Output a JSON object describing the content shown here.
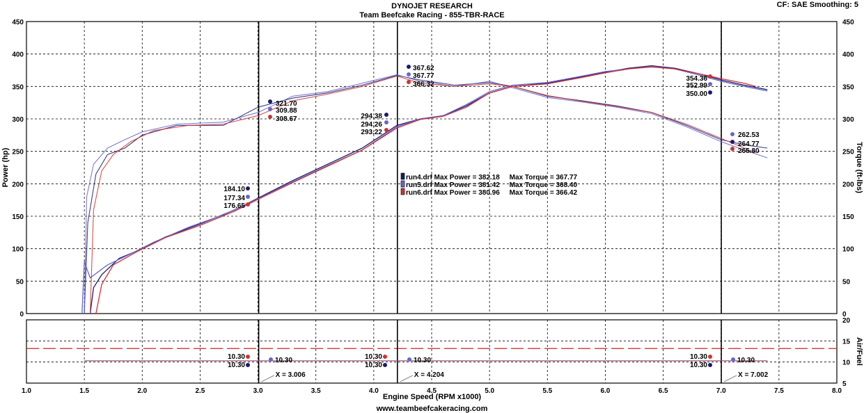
{
  "header": {
    "title": "DYNOJET RESEARCH",
    "subtitle": "Team Beefcake Racing - 855-TBR-RACE",
    "cf_info": "CF: SAE  Smoothing: 5"
  },
  "footer": {
    "url": "www.teambeefcakeracing.com"
  },
  "chart_data": {
    "type": "line",
    "title": "DYNOJET RESEARCH",
    "xlabel": "Engine Speed (RPM x1000)",
    "xlim": [
      1.0,
      8.0
    ],
    "x_ticks": [
      "1.0",
      "1.5",
      "2.0",
      "2.5",
      "3.0",
      "3.5",
      "4.0",
      "4.5",
      "5.0",
      "5.5",
      "6.0",
      "6.5",
      "7.0",
      "7.5",
      "8.0"
    ],
    "main_panel": {
      "ylabel_left": "Power (hp)",
      "ylabel_right": "Torque (ft-lbs)",
      "ylim": [
        0,
        450
      ],
      "y_ticks": [
        "0",
        "50",
        "100",
        "150",
        "200",
        "250",
        "300",
        "350",
        "400",
        "450"
      ],
      "grid": true
    },
    "af_panel": {
      "ylabel_right": "Air/Fuel",
      "ylim": [
        5,
        20
      ],
      "y_ticks": [
        "5",
        "10",
        "15",
        "20"
      ],
      "reference_line": 13.2,
      "af_value": 10.3
    },
    "cursors": [
      {
        "x": 3.006,
        "label": "X = 3.006"
      },
      {
        "x": 4.204,
        "label": "X = 4.204"
      },
      {
        "x": 7.002,
        "label": "X = 7.002"
      }
    ],
    "colors": {
      "run4": "#1a1a6e",
      "run5": "#6666cc",
      "run6": "#cc3333",
      "grid": "#000000",
      "af_ref": "#cc2222"
    },
    "series": [
      {
        "name": "run4.drf",
        "color": "#1a1a6e",
        "power": [
          [
            1.55,
            0
          ],
          [
            1.58,
            40
          ],
          [
            1.65,
            60
          ],
          [
            1.8,
            85
          ],
          [
            2.0,
            100
          ],
          [
            2.2,
            118
          ],
          [
            2.5,
            138
          ],
          [
            2.8,
            160
          ],
          [
            3.0,
            178
          ],
          [
            3.3,
            205
          ],
          [
            3.6,
            230
          ],
          [
            3.9,
            255
          ],
          [
            4.2,
            290
          ],
          [
            4.4,
            300
          ],
          [
            4.6,
            305
          ],
          [
            4.8,
            320
          ],
          [
            5.0,
            340
          ],
          [
            5.2,
            350
          ],
          [
            5.5,
            355
          ],
          [
            5.8,
            365
          ],
          [
            6.0,
            372
          ],
          [
            6.2,
            378
          ],
          [
            6.4,
            382
          ],
          [
            6.6,
            378
          ],
          [
            6.8,
            370
          ],
          [
            7.0,
            360
          ],
          [
            7.2,
            352
          ],
          [
            7.4,
            345
          ]
        ],
        "torque": [
          [
            1.5,
            0
          ],
          [
            1.53,
            140
          ],
          [
            1.6,
            215
          ],
          [
            1.7,
            245
          ],
          [
            1.85,
            255
          ],
          [
            2.0,
            275
          ],
          [
            2.3,
            290
          ],
          [
            2.7,
            290
          ],
          [
            3.0,
            318
          ],
          [
            3.3,
            332
          ],
          [
            3.6,
            340
          ],
          [
            3.9,
            352
          ],
          [
            4.2,
            367
          ],
          [
            4.4,
            360
          ],
          [
            4.7,
            352
          ],
          [
            5.0,
            356
          ],
          [
            5.2,
            350
          ],
          [
            5.5,
            335
          ],
          [
            5.8,
            328
          ],
          [
            6.1,
            320
          ],
          [
            6.4,
            310
          ],
          [
            6.7,
            290
          ],
          [
            7.0,
            268
          ],
          [
            7.2,
            260
          ],
          [
            7.4,
            255
          ]
        ],
        "power_cursor_labels": [
          "184.10",
          "294.38",
          "350.00"
        ],
        "torque_cursor_labels": [
          "321.70",
          "367.62",
          "264.77"
        ],
        "af_labels": [
          "10.30",
          "10.30",
          "10.30"
        ],
        "legend": "run4.drf Max Power = 382.18     Max Torque = 367.77"
      },
      {
        "name": "run5.drf",
        "color": "#6666cc",
        "power": [
          [
            1.48,
            0
          ],
          [
            1.5,
            80
          ],
          [
            1.55,
            55
          ],
          [
            1.7,
            75
          ],
          [
            1.9,
            92
          ],
          [
            2.1,
            110
          ],
          [
            2.4,
            133
          ],
          [
            2.7,
            152
          ],
          [
            3.0,
            177
          ],
          [
            3.3,
            203
          ],
          [
            3.6,
            228
          ],
          [
            3.9,
            252
          ],
          [
            4.2,
            288
          ],
          [
            4.4,
            300
          ],
          [
            4.6,
            305
          ],
          [
            4.8,
            322
          ],
          [
            5.0,
            342
          ],
          [
            5.2,
            352
          ],
          [
            5.5,
            356
          ],
          [
            5.8,
            366
          ],
          [
            6.0,
            373
          ],
          [
            6.2,
            377
          ],
          [
            6.4,
            381
          ],
          [
            6.6,
            377
          ],
          [
            6.8,
            368
          ],
          [
            7.0,
            358
          ],
          [
            7.2,
            350
          ],
          [
            7.4,
            343
          ]
        ],
        "torque": [
          [
            1.5,
            0
          ],
          [
            1.52,
            180
          ],
          [
            1.58,
            230
          ],
          [
            1.7,
            255
          ],
          [
            1.85,
            268
          ],
          [
            2.0,
            280
          ],
          [
            2.3,
            292
          ],
          [
            2.7,
            295
          ],
          [
            3.0,
            310
          ],
          [
            3.3,
            335
          ],
          [
            3.6,
            342
          ],
          [
            3.9,
            355
          ],
          [
            4.2,
            368
          ],
          [
            4.4,
            358
          ],
          [
            4.7,
            350
          ],
          [
            5.0,
            358
          ],
          [
            5.2,
            348
          ],
          [
            5.5,
            333
          ],
          [
            5.8,
            326
          ],
          [
            6.1,
            318
          ],
          [
            6.4,
            308
          ],
          [
            6.7,
            288
          ],
          [
            7.0,
            265
          ],
          [
            7.2,
            252
          ],
          [
            7.4,
            240
          ]
        ],
        "power_cursor_labels": [
          "177.34",
          "294.26",
          "352.99"
        ],
        "torque_cursor_labels": [
          "309.88",
          "367.77",
          "262.53"
        ],
        "af_labels": [
          "10.30",
          "10.30",
          "10.30"
        ],
        "legend": "run5.drf Max Power = 381.42     Max Torque = 368.40"
      },
      {
        "name": "run6.drf",
        "color": "#cc3333",
        "power": [
          [
            1.6,
            0
          ],
          [
            1.65,
            45
          ],
          [
            1.75,
            75
          ],
          [
            1.95,
            95
          ],
          [
            2.2,
            117
          ],
          [
            2.5,
            136
          ],
          [
            2.8,
            158
          ],
          [
            3.0,
            176
          ],
          [
            3.3,
            202
          ],
          [
            3.6,
            227
          ],
          [
            3.9,
            252
          ],
          [
            4.2,
            286
          ],
          [
            4.4,
            299
          ],
          [
            4.6,
            304
          ],
          [
            4.8,
            318
          ],
          [
            5.0,
            340
          ],
          [
            5.2,
            350
          ],
          [
            5.5,
            354
          ],
          [
            5.8,
            364
          ],
          [
            6.0,
            371
          ],
          [
            6.2,
            377
          ],
          [
            6.4,
            380
          ],
          [
            6.6,
            377
          ],
          [
            6.8,
            370
          ],
          [
            7.0,
            362
          ],
          [
            7.2,
            355
          ],
          [
            7.3,
            350
          ]
        ],
        "torque": [
          [
            1.55,
            0
          ],
          [
            1.58,
            160
          ],
          [
            1.65,
            220
          ],
          [
            1.75,
            245
          ],
          [
            1.9,
            265
          ],
          [
            2.1,
            282
          ],
          [
            2.4,
            290
          ],
          [
            2.7,
            292
          ],
          [
            3.0,
            305
          ],
          [
            3.3,
            328
          ],
          [
            3.6,
            338
          ],
          [
            3.9,
            350
          ],
          [
            4.2,
            366
          ],
          [
            4.4,
            355
          ],
          [
            4.7,
            350
          ],
          [
            5.0,
            354
          ],
          [
            5.2,
            350
          ],
          [
            5.5,
            336
          ],
          [
            5.8,
            327
          ],
          [
            6.1,
            319
          ],
          [
            6.4,
            310
          ],
          [
            6.7,
            292
          ],
          [
            7.0,
            270
          ],
          [
            7.2,
            255
          ],
          [
            7.3,
            248
          ]
        ],
        "power_cursor_labels": [
          "176.65",
          "293.22",
          "354.36"
        ],
        "torque_cursor_labels": [
          "308.67",
          "366.32",
          "265.80"
        ],
        "af_labels": [
          "10.30",
          "10.30",
          "10.30"
        ],
        "legend": "run6.drf Max Power = 380.96     Max Torque = 366.42"
      }
    ]
  }
}
